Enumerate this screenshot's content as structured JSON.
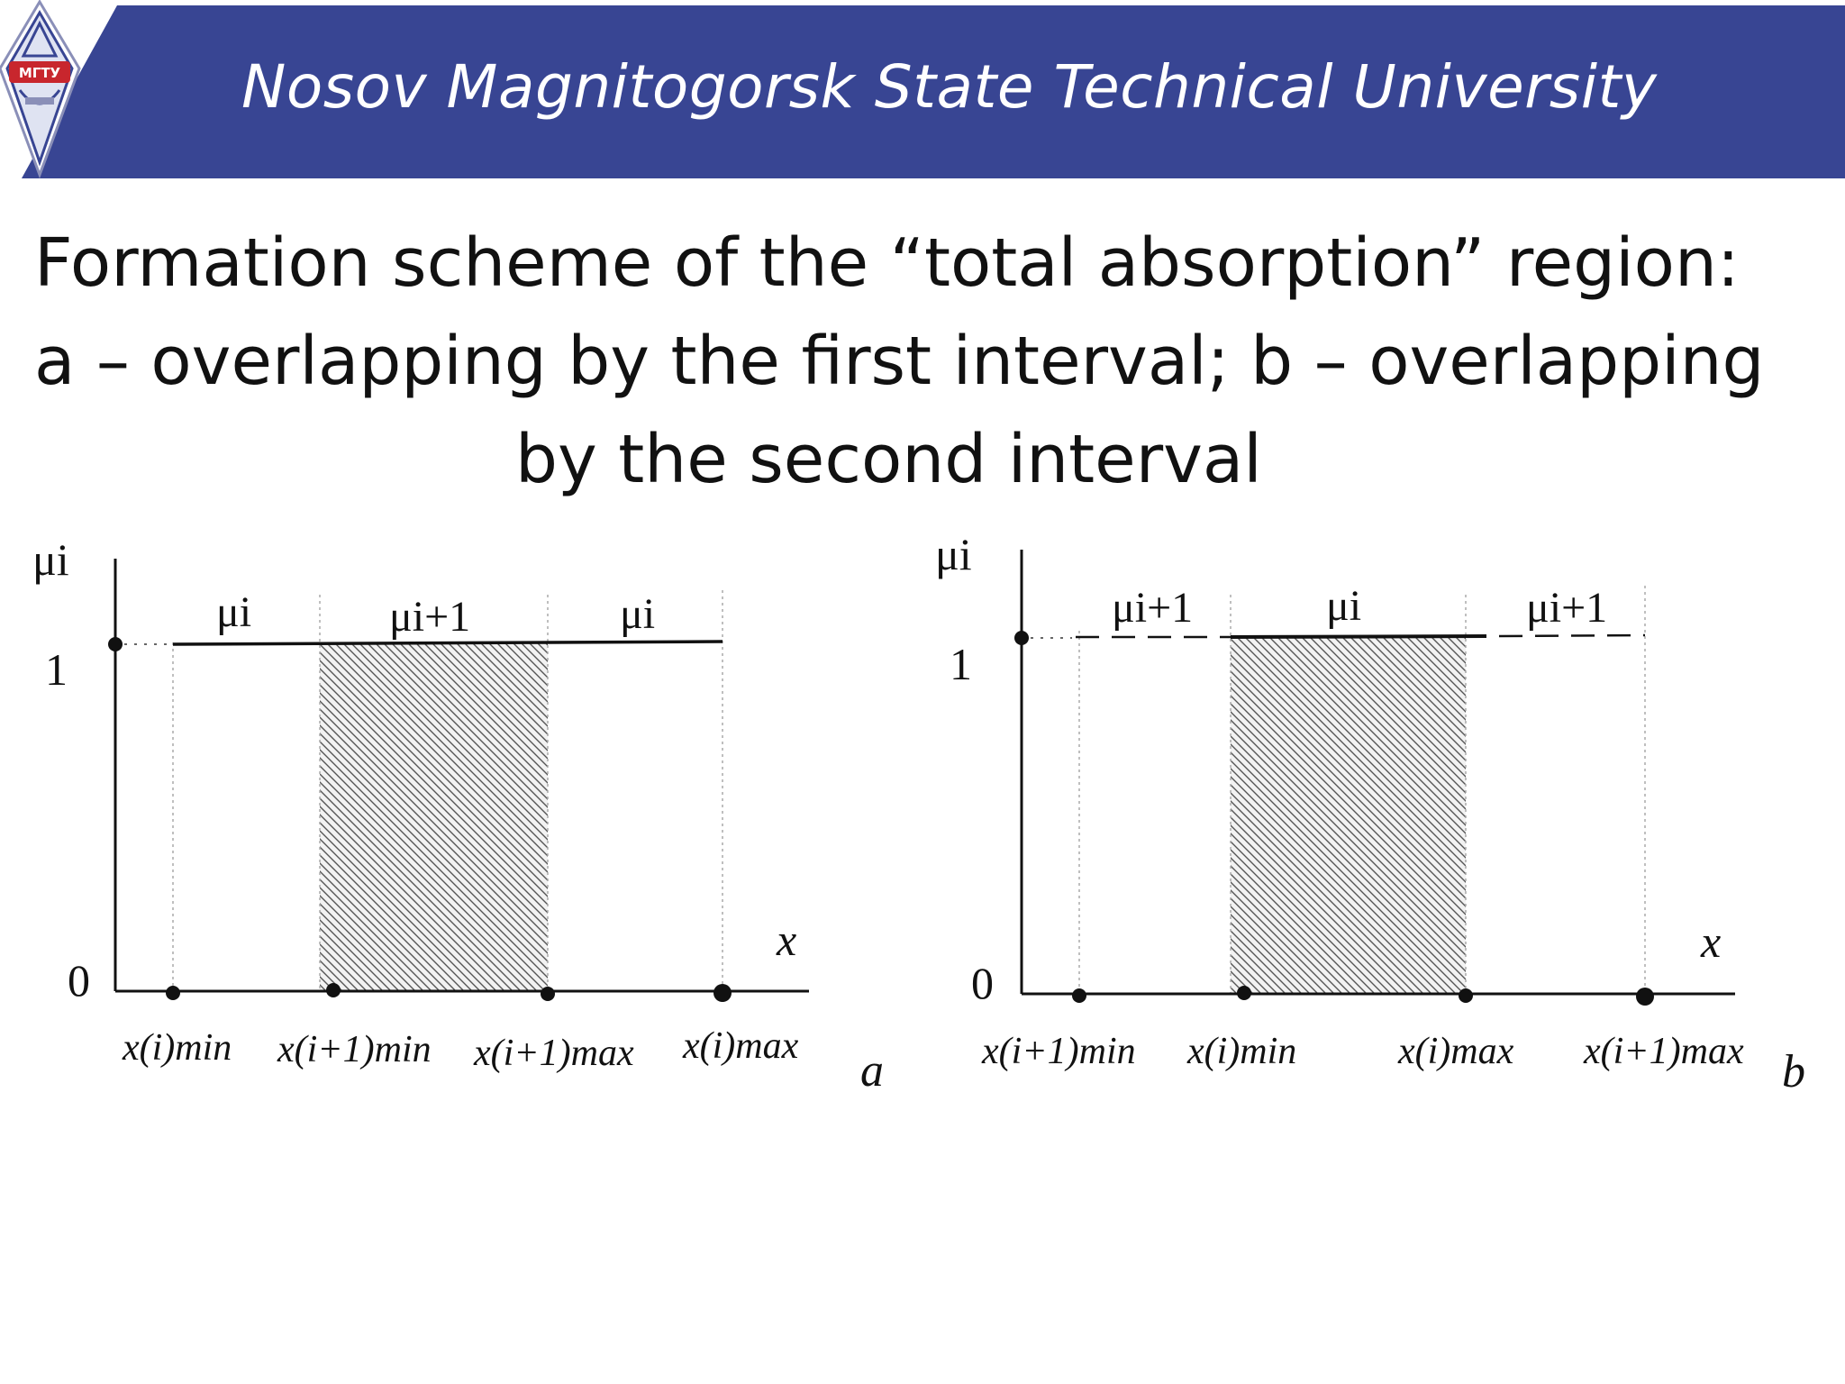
{
  "header": {
    "university": "Nosov Magnitogorsk State Technical University",
    "logo_text": "МГТУ",
    "colors": {
      "band": "#384593",
      "text": "#ffffff",
      "logo_red": "#c8262d"
    }
  },
  "title": {
    "line1": "Formation scheme of the “total absorption” region:",
    "line2": "a – overlapping by the first interval; b – overlapping",
    "line3": "by the second interval"
  },
  "diagram_a": {
    "panel_label": "a",
    "axis_y_label": "μi",
    "axis_x_label": "x",
    "tick_one": "1",
    "tick_zero": "0",
    "level_labels": [
      "μi",
      "μi+1",
      "μi"
    ],
    "x_labels": [
      "x(i)min",
      "x(i+1)min",
      "x(i+1)max",
      "x(i)max"
    ]
  },
  "diagram_b": {
    "panel_label": "b",
    "axis_y_label": "μi",
    "axis_x_label": "x",
    "tick_one": "1",
    "tick_zero": "0",
    "level_labels": [
      "μi+1",
      "μi",
      "μi+1"
    ],
    "x_labels": [
      "x(i+1)min",
      "x(i)min",
      "x(i)max",
      "x(i+1)max"
    ]
  }
}
